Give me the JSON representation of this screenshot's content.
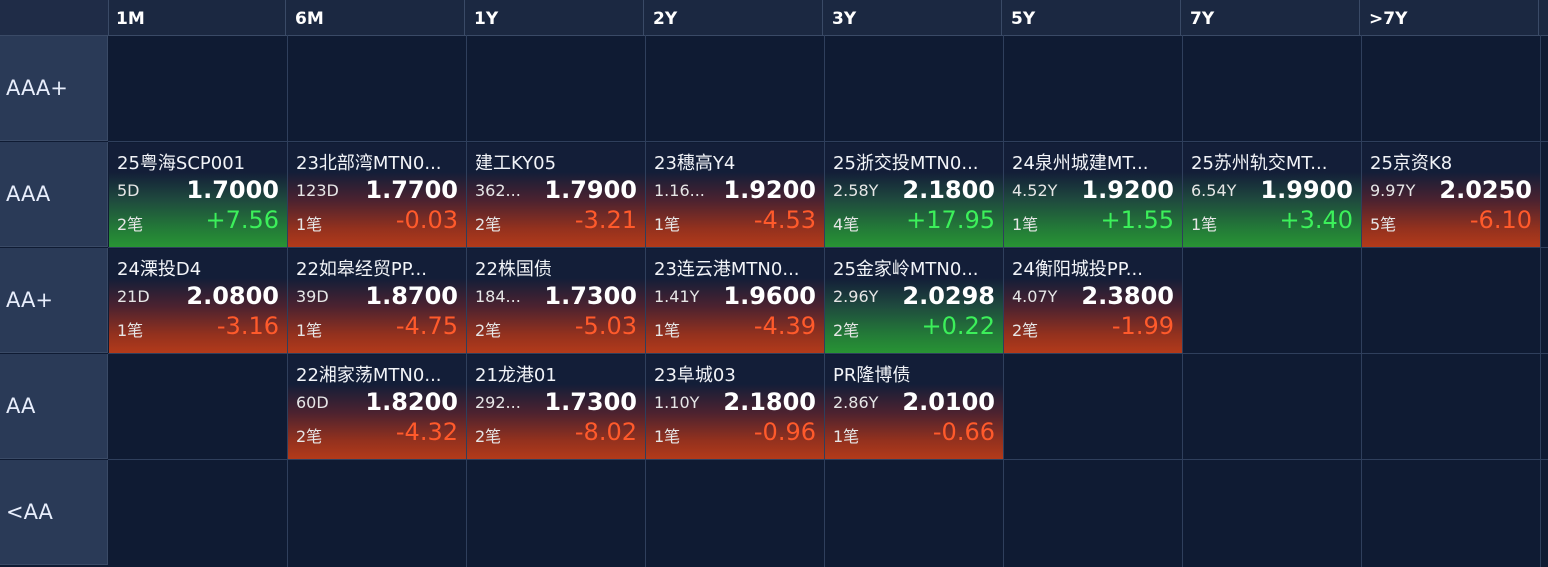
{
  "columns": [
    "1M",
    "6M",
    "1Y",
    "2Y",
    "3Y",
    "5Y",
    "7Y",
    ">7Y"
  ],
  "rows": [
    "AAA+",
    "AAA",
    "AA+",
    "AA",
    "<AA"
  ],
  "tiles": [
    {
      "row": 1,
      "col": 0,
      "name": "25粤海SCP001",
      "term": "5D",
      "price": "1.7000",
      "count": "2笔",
      "change": "+7.56",
      "dir": "pos"
    },
    {
      "row": 1,
      "col": 1,
      "name": "23北部湾MTN0...",
      "term": "123D",
      "price": "1.7700",
      "count": "1笔",
      "change": "-0.03",
      "dir": "neg"
    },
    {
      "row": 1,
      "col": 2,
      "name": "建工KY05",
      "term": "362...",
      "price": "1.7900",
      "count": "2笔",
      "change": "-3.21",
      "dir": "neg"
    },
    {
      "row": 1,
      "col": 3,
      "name": "23穗高Y4",
      "term": "1.16...",
      "price": "1.9200",
      "count": "1笔",
      "change": "-4.53",
      "dir": "neg"
    },
    {
      "row": 1,
      "col": 4,
      "name": "25浙交投MTN0...",
      "term": "2.58Y",
      "price": "2.1800",
      "count": "4笔",
      "change": "+17.95",
      "dir": "pos"
    },
    {
      "row": 1,
      "col": 5,
      "name": "24泉州城建MT...",
      "term": "4.52Y",
      "price": "1.9200",
      "count": "1笔",
      "change": "+1.55",
      "dir": "pos"
    },
    {
      "row": 1,
      "col": 6,
      "name": "25苏州轨交MT...",
      "term": "6.54Y",
      "price": "1.9900",
      "count": "1笔",
      "change": "+3.40",
      "dir": "pos"
    },
    {
      "row": 1,
      "col": 7,
      "name": "25京资K8",
      "term": "9.97Y",
      "price": "2.0250",
      "count": "5笔",
      "change": "-6.10",
      "dir": "neg"
    },
    {
      "row": 2,
      "col": 0,
      "name": "24溧投D4",
      "term": "21D",
      "price": "2.0800",
      "count": "1笔",
      "change": "-3.16",
      "dir": "neg"
    },
    {
      "row": 2,
      "col": 1,
      "name": "22如皋经贸PP...",
      "term": "39D",
      "price": "1.8700",
      "count": "1笔",
      "change": "-4.75",
      "dir": "neg"
    },
    {
      "row": 2,
      "col": 2,
      "name": "22株国债",
      "term": "184...",
      "price": "1.7300",
      "count": "2笔",
      "change": "-5.03",
      "dir": "neg"
    },
    {
      "row": 2,
      "col": 3,
      "name": "23连云港MTN0...",
      "term": "1.41Y",
      "price": "1.9600",
      "count": "1笔",
      "change": "-4.39",
      "dir": "neg"
    },
    {
      "row": 2,
      "col": 4,
      "name": "25金家岭MTN0...",
      "term": "2.96Y",
      "price": "2.0298",
      "count": "2笔",
      "change": "+0.22",
      "dir": "pos"
    },
    {
      "row": 2,
      "col": 5,
      "name": "24衡阳城投PP...",
      "term": "4.07Y",
      "price": "2.3800",
      "count": "2笔",
      "change": "-1.99",
      "dir": "neg"
    },
    {
      "row": 3,
      "col": 1,
      "name": "22湘家荡MTN0...",
      "term": "60D",
      "price": "1.8200",
      "count": "2笔",
      "change": "-4.32",
      "dir": "neg"
    },
    {
      "row": 3,
      "col": 2,
      "name": "21龙港01",
      "term": "292...",
      "price": "1.7300",
      "count": "2笔",
      "change": "-8.02",
      "dir": "neg"
    },
    {
      "row": 3,
      "col": 3,
      "name": "23阜城03",
      "term": "1.10Y",
      "price": "2.1800",
      "count": "1笔",
      "change": "-0.96",
      "dir": "neg"
    },
    {
      "row": 3,
      "col": 4,
      "name": "PR隆博债",
      "term": "2.86Y",
      "price": "2.0100",
      "count": "1笔",
      "change": "-0.66",
      "dir": "neg"
    }
  ],
  "colors": {
    "negative": "#ff5a2b",
    "positive": "#3cf05a",
    "background": "#0f1b33"
  }
}
